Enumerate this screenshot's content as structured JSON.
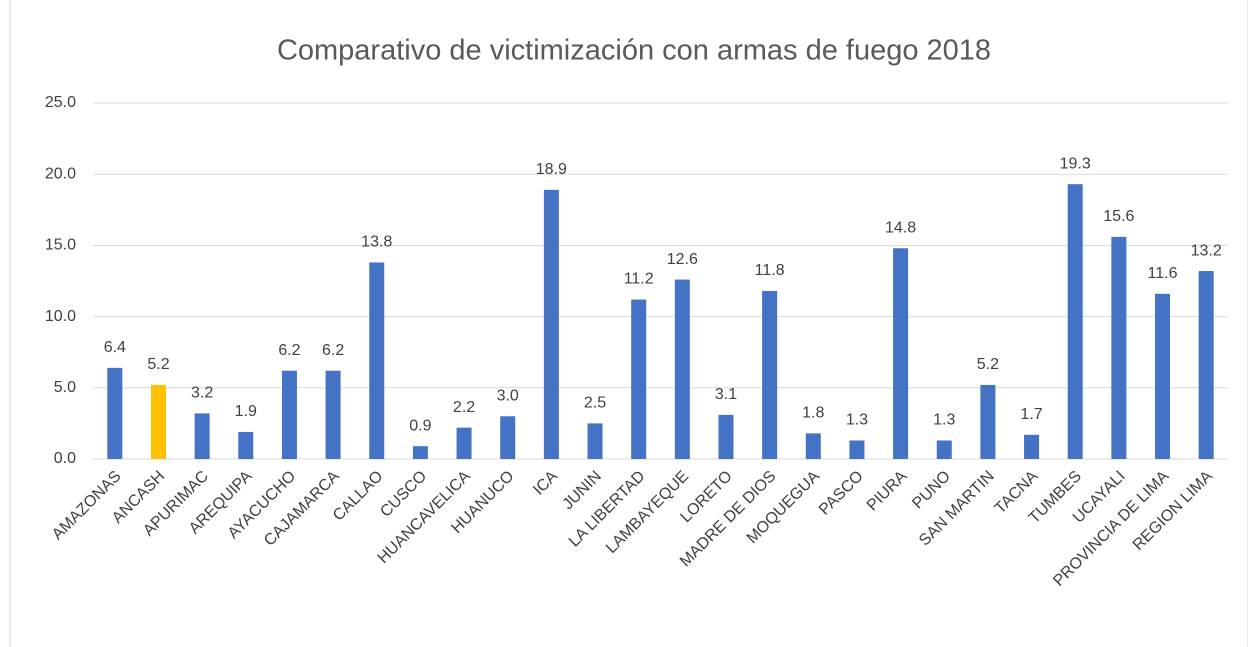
{
  "chart_data": {
    "type": "bar",
    "title": "Comparativo de victimización con  armas de fuego 2018",
    "categories": [
      "AMAZONAS",
      "ANCASH",
      "APURIMAC",
      "AREQUIPA",
      "AYACUCHO",
      "CAJAMARCA",
      "CALLAO",
      "CUSCO",
      "HUANCAVELICA",
      "HUANUCO",
      "ICA",
      "JUNIN",
      "LA LIBERTAD",
      "LAMBAYEQUE",
      "LORETO",
      "MADRE DE DIOS",
      "MOQUEGUA",
      "PASCO",
      "PIURA",
      "PUNO",
      "SAN MARTIN",
      "TACNA",
      "TUMBES",
      "UCAYALI",
      "PROVINCIA DE LIMA",
      "REGION LIMA"
    ],
    "values": [
      6.4,
      5.2,
      3.2,
      1.9,
      6.2,
      6.2,
      13.8,
      0.9,
      2.2,
      3.0,
      18.9,
      2.5,
      11.2,
      12.6,
      3.1,
      11.8,
      1.8,
      1.3,
      14.8,
      1.3,
      5.2,
      1.7,
      19.3,
      15.6,
      11.6,
      13.2
    ],
    "value_labels": [
      "6.4",
      "5.2",
      "3.2",
      "1.9",
      "6.2",
      "6.2",
      "13.8",
      "0.9",
      "2.2",
      "3.0",
      "18.9",
      "2.5",
      "11.2",
      "12.6",
      "3.1",
      "11.8",
      "1.8",
      "1.3",
      "14.8",
      "1.3",
      "5.2",
      "1.7",
      "19.3",
      "15.6",
      "11.6",
      "13.2"
    ],
    "colors": [
      "#4472c4",
      "#ffc000",
      "#4472c4",
      "#4472c4",
      "#4472c4",
      "#4472c4",
      "#4472c4",
      "#4472c4",
      "#4472c4",
      "#4472c4",
      "#4472c4",
      "#4472c4",
      "#4472c4",
      "#4472c4",
      "#4472c4",
      "#4472c4",
      "#4472c4",
      "#4472c4",
      "#4472c4",
      "#4472c4",
      "#4472c4",
      "#4472c4",
      "#4472c4",
      "#4472c4",
      "#4472c4",
      "#4472c4"
    ],
    "ylim": [
      0,
      25
    ],
    "yticks": [
      {
        "value": 0,
        "label": "0.0"
      },
      {
        "value": 5,
        "label": "5.0"
      },
      {
        "value": 10,
        "label": "10.0"
      },
      {
        "value": 15,
        "label": "15.0"
      },
      {
        "value": 20,
        "label": "20.0"
      },
      {
        "value": 25,
        "label": "25.0"
      }
    ],
    "grid": true
  }
}
